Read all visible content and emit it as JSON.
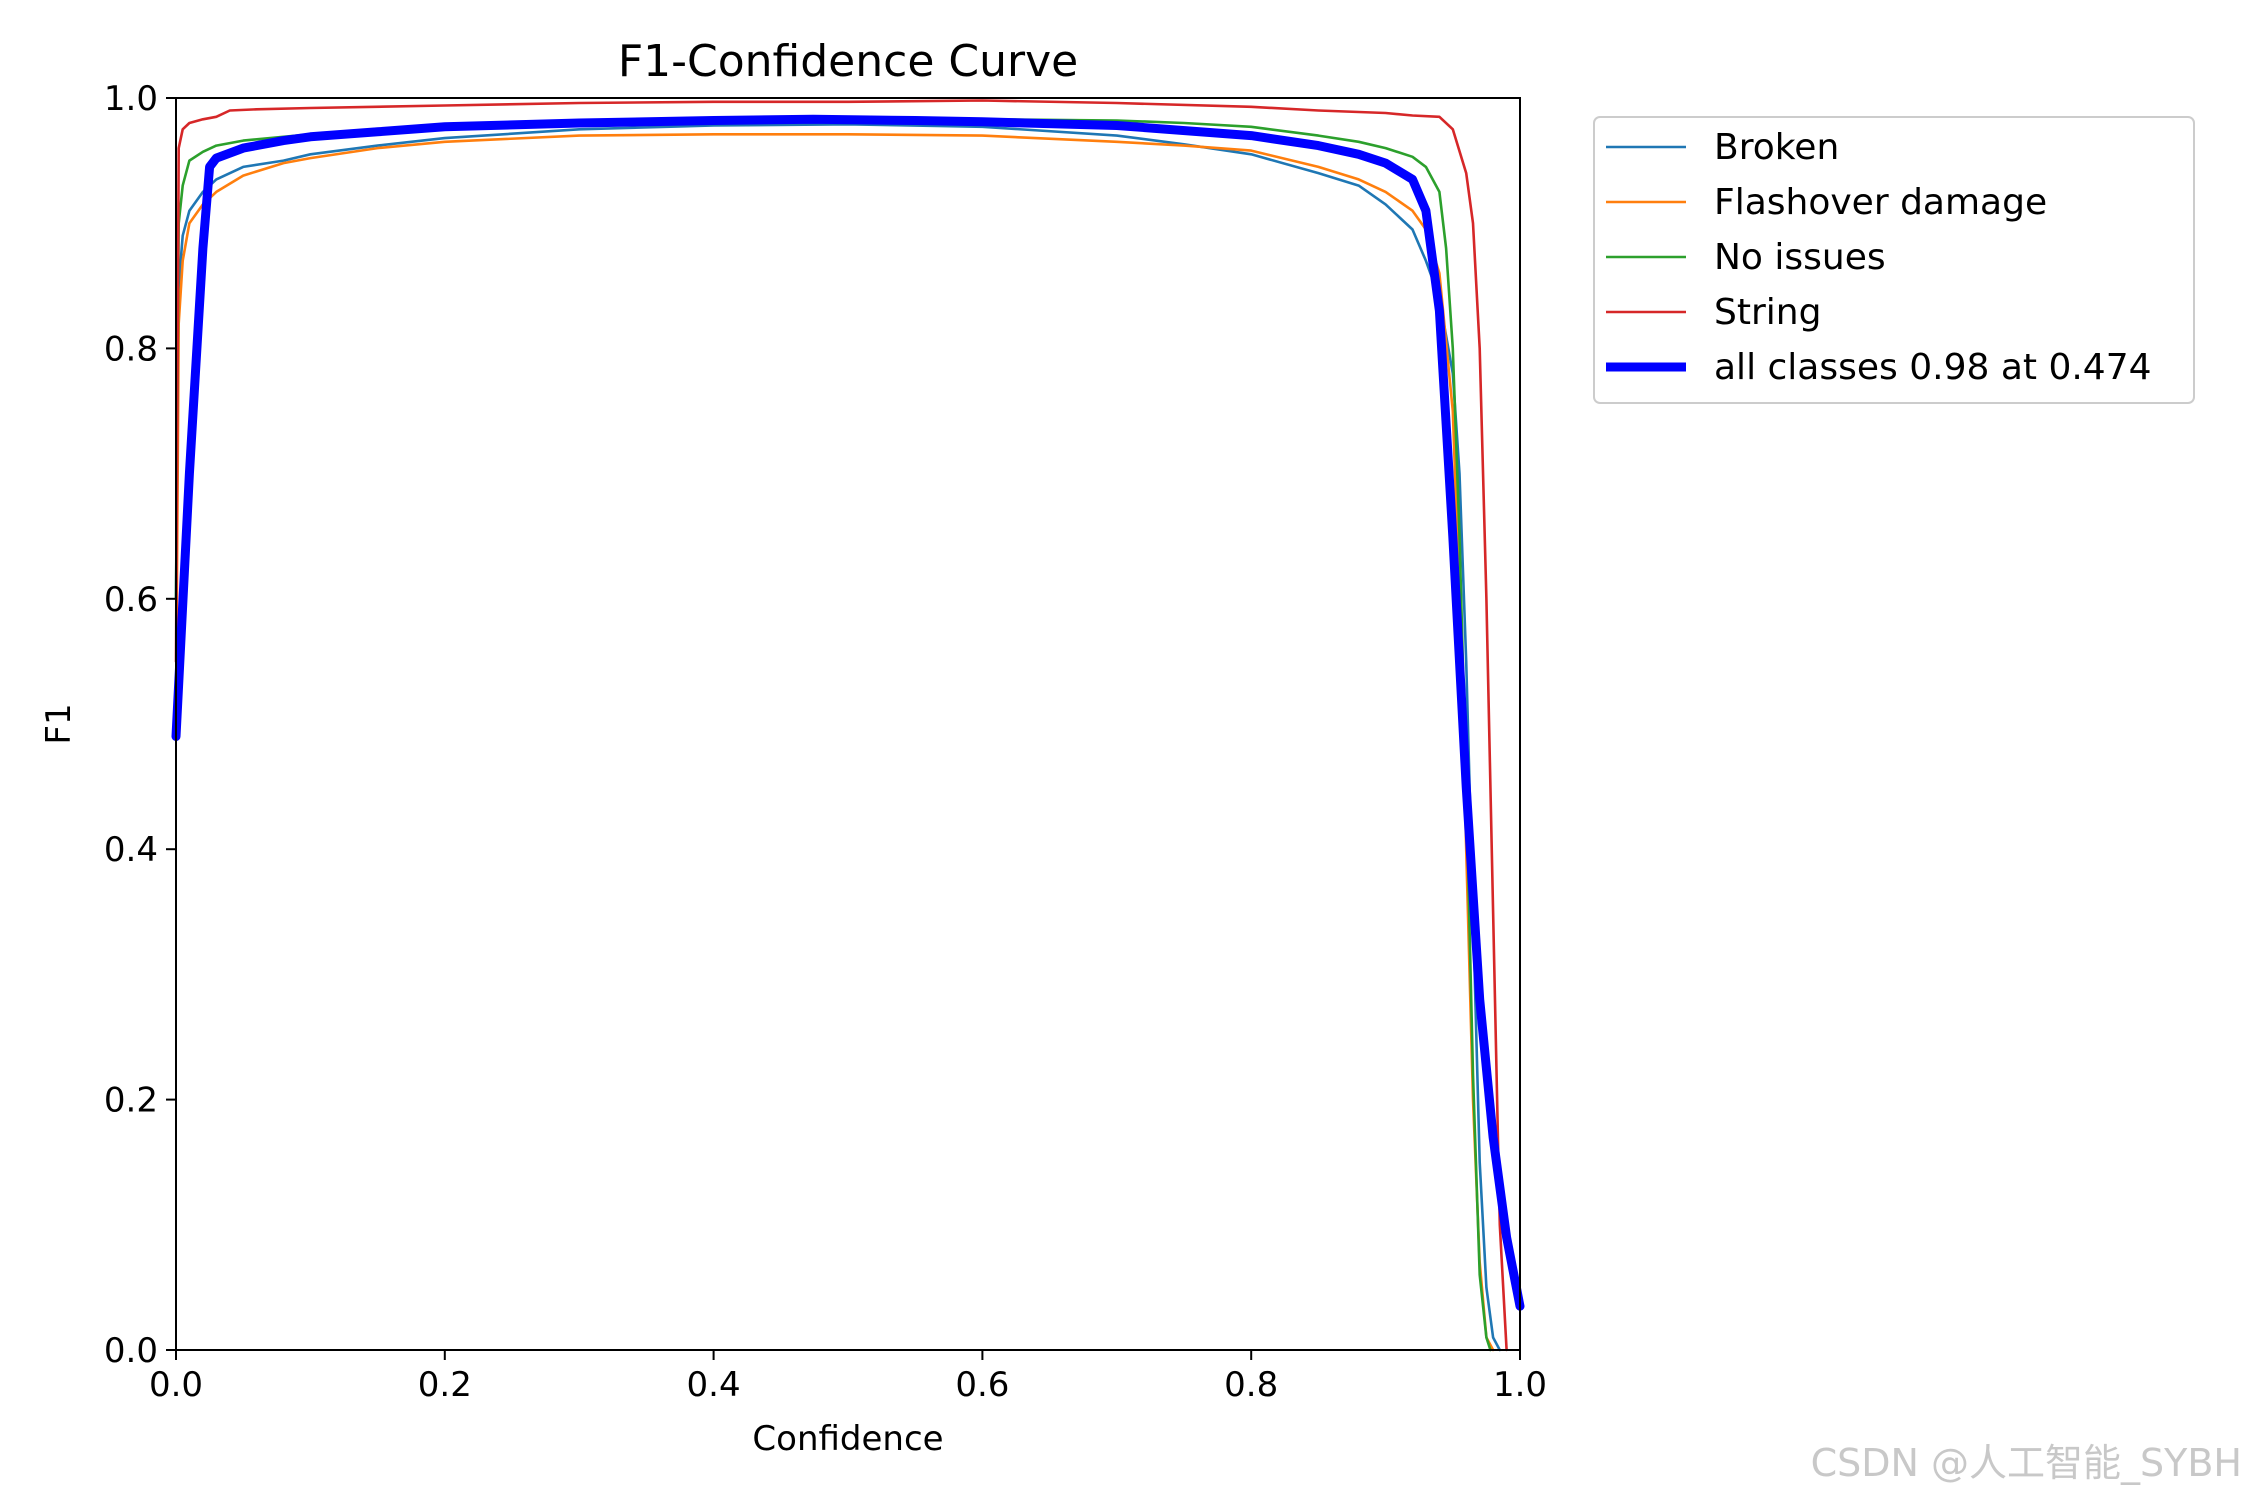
{
  "watermark": "CSDN @人工智能_SYBH",
  "chart_data": {
    "type": "line",
    "title": "F1-Confidence Curve",
    "xlabel": "Confidence",
    "ylabel": "F1",
    "xlim": [
      0.0,
      1.0
    ],
    "ylim": [
      0.0,
      1.0
    ],
    "xticks": [
      "0.0",
      "0.2",
      "0.4",
      "0.6",
      "0.8",
      "1.0"
    ],
    "yticks": [
      "0.0",
      "0.2",
      "0.4",
      "0.6",
      "0.8",
      "1.0"
    ],
    "grid": false,
    "legend_position": "outside-top-right",
    "series": [
      {
        "name": "Broken",
        "color": "#1f77b4",
        "x": [
          0.0,
          0.002,
          0.005,
          0.01,
          0.02,
          0.03,
          0.05,
          0.08,
          0.1,
          0.15,
          0.2,
          0.3,
          0.4,
          0.5,
          0.6,
          0.7,
          0.75,
          0.8,
          0.85,
          0.88,
          0.9,
          0.92,
          0.93,
          0.94,
          0.95,
          0.955,
          0.96,
          0.965,
          0.97,
          0.975,
          0.98,
          0.985
        ],
        "y": [
          0.6,
          0.85,
          0.89,
          0.91,
          0.925,
          0.935,
          0.945,
          0.95,
          0.955,
          0.962,
          0.968,
          0.975,
          0.978,
          0.979,
          0.977,
          0.97,
          0.963,
          0.955,
          0.94,
          0.93,
          0.915,
          0.895,
          0.87,
          0.84,
          0.78,
          0.7,
          0.55,
          0.35,
          0.15,
          0.05,
          0.01,
          0.0
        ]
      },
      {
        "name": "Flashover damage",
        "color": "#ff7f0e",
        "x": [
          0.0,
          0.002,
          0.005,
          0.01,
          0.02,
          0.03,
          0.05,
          0.08,
          0.1,
          0.15,
          0.2,
          0.3,
          0.4,
          0.5,
          0.6,
          0.7,
          0.75,
          0.8,
          0.85,
          0.88,
          0.9,
          0.92,
          0.93,
          0.94,
          0.95,
          0.955,
          0.96,
          0.965,
          0.97,
          0.975,
          0.98
        ],
        "y": [
          0.5,
          0.82,
          0.87,
          0.9,
          0.915,
          0.925,
          0.938,
          0.948,
          0.952,
          0.96,
          0.965,
          0.97,
          0.971,
          0.971,
          0.97,
          0.965,
          0.962,
          0.958,
          0.945,
          0.935,
          0.925,
          0.91,
          0.895,
          0.86,
          0.75,
          0.6,
          0.4,
          0.2,
          0.07,
          0.01,
          0.0
        ]
      },
      {
        "name": "No issues",
        "color": "#2ca02c",
        "x": [
          0.0,
          0.002,
          0.005,
          0.01,
          0.02,
          0.03,
          0.05,
          0.08,
          0.1,
          0.15,
          0.2,
          0.3,
          0.4,
          0.5,
          0.6,
          0.7,
          0.75,
          0.8,
          0.85,
          0.88,
          0.9,
          0.92,
          0.93,
          0.94,
          0.945,
          0.95,
          0.955,
          0.96,
          0.965,
          0.97,
          0.975,
          0.978
        ],
        "y": [
          0.6,
          0.9,
          0.93,
          0.95,
          0.957,
          0.962,
          0.966,
          0.969,
          0.971,
          0.974,
          0.977,
          0.98,
          0.982,
          0.983,
          0.983,
          0.982,
          0.98,
          0.977,
          0.97,
          0.965,
          0.96,
          0.953,
          0.945,
          0.925,
          0.88,
          0.8,
          0.65,
          0.45,
          0.22,
          0.06,
          0.01,
          0.0
        ]
      },
      {
        "name": "String",
        "color": "#d62728",
        "x": [
          0.0,
          0.002,
          0.005,
          0.01,
          0.02,
          0.03,
          0.04,
          0.06,
          0.1,
          0.2,
          0.3,
          0.4,
          0.5,
          0.6,
          0.7,
          0.8,
          0.85,
          0.9,
          0.92,
          0.94,
          0.95,
          0.96,
          0.965,
          0.97,
          0.975,
          0.98,
          0.985,
          0.99
        ],
        "y": [
          0.55,
          0.96,
          0.975,
          0.98,
          0.983,
          0.985,
          0.99,
          0.991,
          0.992,
          0.994,
          0.996,
          0.997,
          0.997,
          0.998,
          0.996,
          0.993,
          0.99,
          0.988,
          0.986,
          0.985,
          0.975,
          0.94,
          0.9,
          0.8,
          0.6,
          0.35,
          0.1,
          0.0
        ]
      },
      {
        "name": "all classes 0.98 at 0.474",
        "color": "#0000ff",
        "thick": true,
        "x": [
          0.0,
          0.01,
          0.02,
          0.025,
          0.03,
          0.05,
          0.08,
          0.1,
          0.15,
          0.2,
          0.3,
          0.4,
          0.474,
          0.55,
          0.6,
          0.7,
          0.8,
          0.85,
          0.88,
          0.9,
          0.92,
          0.93,
          0.94,
          0.95,
          0.96,
          0.97,
          0.98,
          0.99,
          1.0
        ],
        "y": [
          0.49,
          0.7,
          0.88,
          0.945,
          0.952,
          0.96,
          0.966,
          0.969,
          0.973,
          0.977,
          0.98,
          0.982,
          0.983,
          0.982,
          0.981,
          0.978,
          0.97,
          0.962,
          0.955,
          0.948,
          0.935,
          0.91,
          0.83,
          0.65,
          0.45,
          0.28,
          0.17,
          0.09,
          0.035
        ]
      }
    ]
  }
}
